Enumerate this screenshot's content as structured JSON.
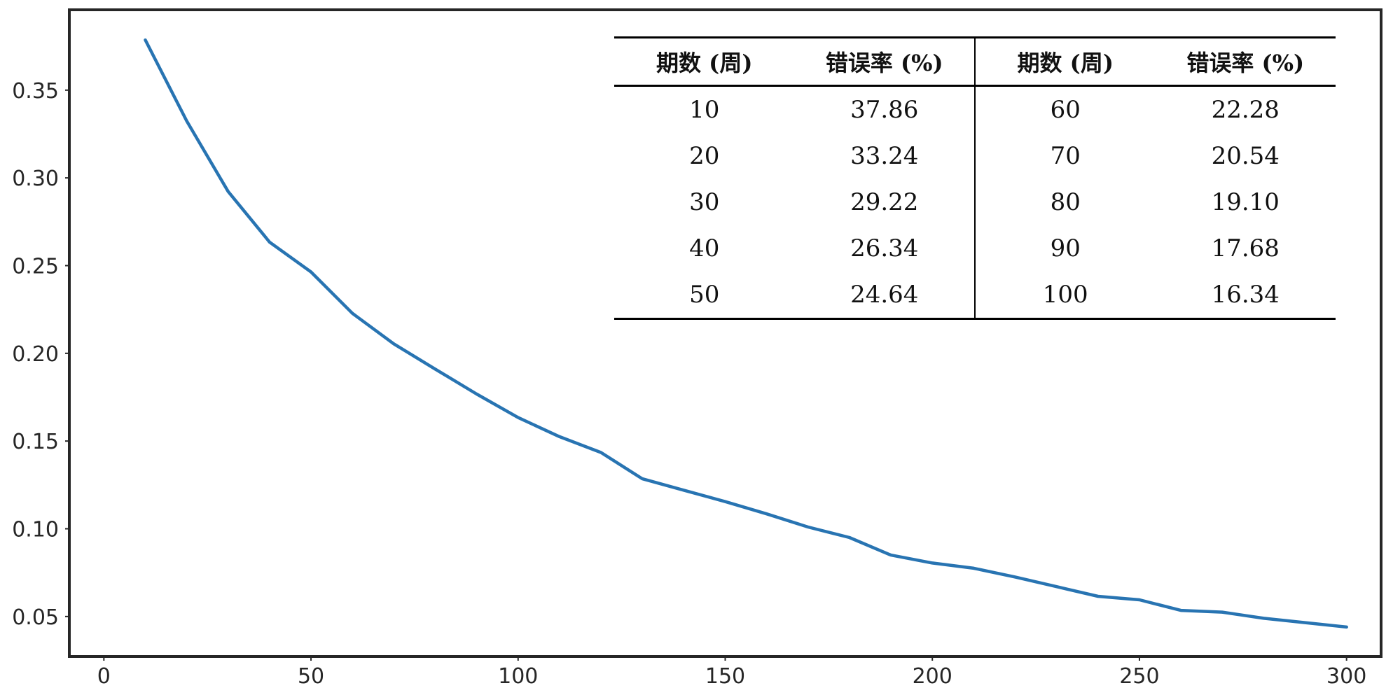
{
  "chart_data": {
    "type": "line",
    "title": "",
    "xlabel": "",
    "ylabel": "",
    "xlim": [
      -8,
      308
    ],
    "ylim": [
      0.028,
      0.395
    ],
    "x_ticks": [
      0,
      50,
      100,
      150,
      200,
      250,
      300
    ],
    "y_ticks": [
      0.05,
      0.1,
      0.15,
      0.2,
      0.25,
      0.3,
      0.35
    ],
    "x_tick_labels": [
      "0",
      "50",
      "100",
      "150",
      "200",
      "250",
      "300"
    ],
    "y_tick_labels": [
      "0.05",
      "0.10",
      "0.15",
      "0.20",
      "0.25",
      "0.30",
      "0.35"
    ],
    "grid": false,
    "series": [
      {
        "color": "#2874b2",
        "x": [
          10,
          20,
          30,
          40,
          50,
          60,
          70,
          80,
          90,
          100,
          110,
          120,
          130,
          140,
          150,
          160,
          170,
          180,
          190,
          200,
          210,
          220,
          230,
          240,
          250,
          260,
          270,
          280,
          290,
          300
        ],
        "y": [
          0.3786,
          0.3324,
          0.2922,
          0.2634,
          0.2464,
          0.2228,
          0.2054,
          0.191,
          0.1768,
          0.1634,
          0.1525,
          0.1435,
          0.1285,
          0.122,
          0.1155,
          0.1085,
          0.101,
          0.095,
          0.085,
          0.0805,
          0.0775,
          0.0725,
          0.067,
          0.0615,
          0.0595,
          0.0535,
          0.0525,
          0.049,
          0.0465,
          0.044
        ]
      }
    ]
  },
  "table": {
    "headers": [
      "期数 (周)",
      "错误率 (%)",
      "期数 (周)",
      "错误率 (%)"
    ],
    "rows": [
      [
        "10",
        "37.86",
        "60",
        "22.28"
      ],
      [
        "20",
        "33.24",
        "70",
        "20.54"
      ],
      [
        "30",
        "29.22",
        "80",
        "19.10"
      ],
      [
        "40",
        "26.34",
        "90",
        "17.68"
      ],
      [
        "50",
        "24.64",
        "100",
        "16.34"
      ]
    ]
  }
}
